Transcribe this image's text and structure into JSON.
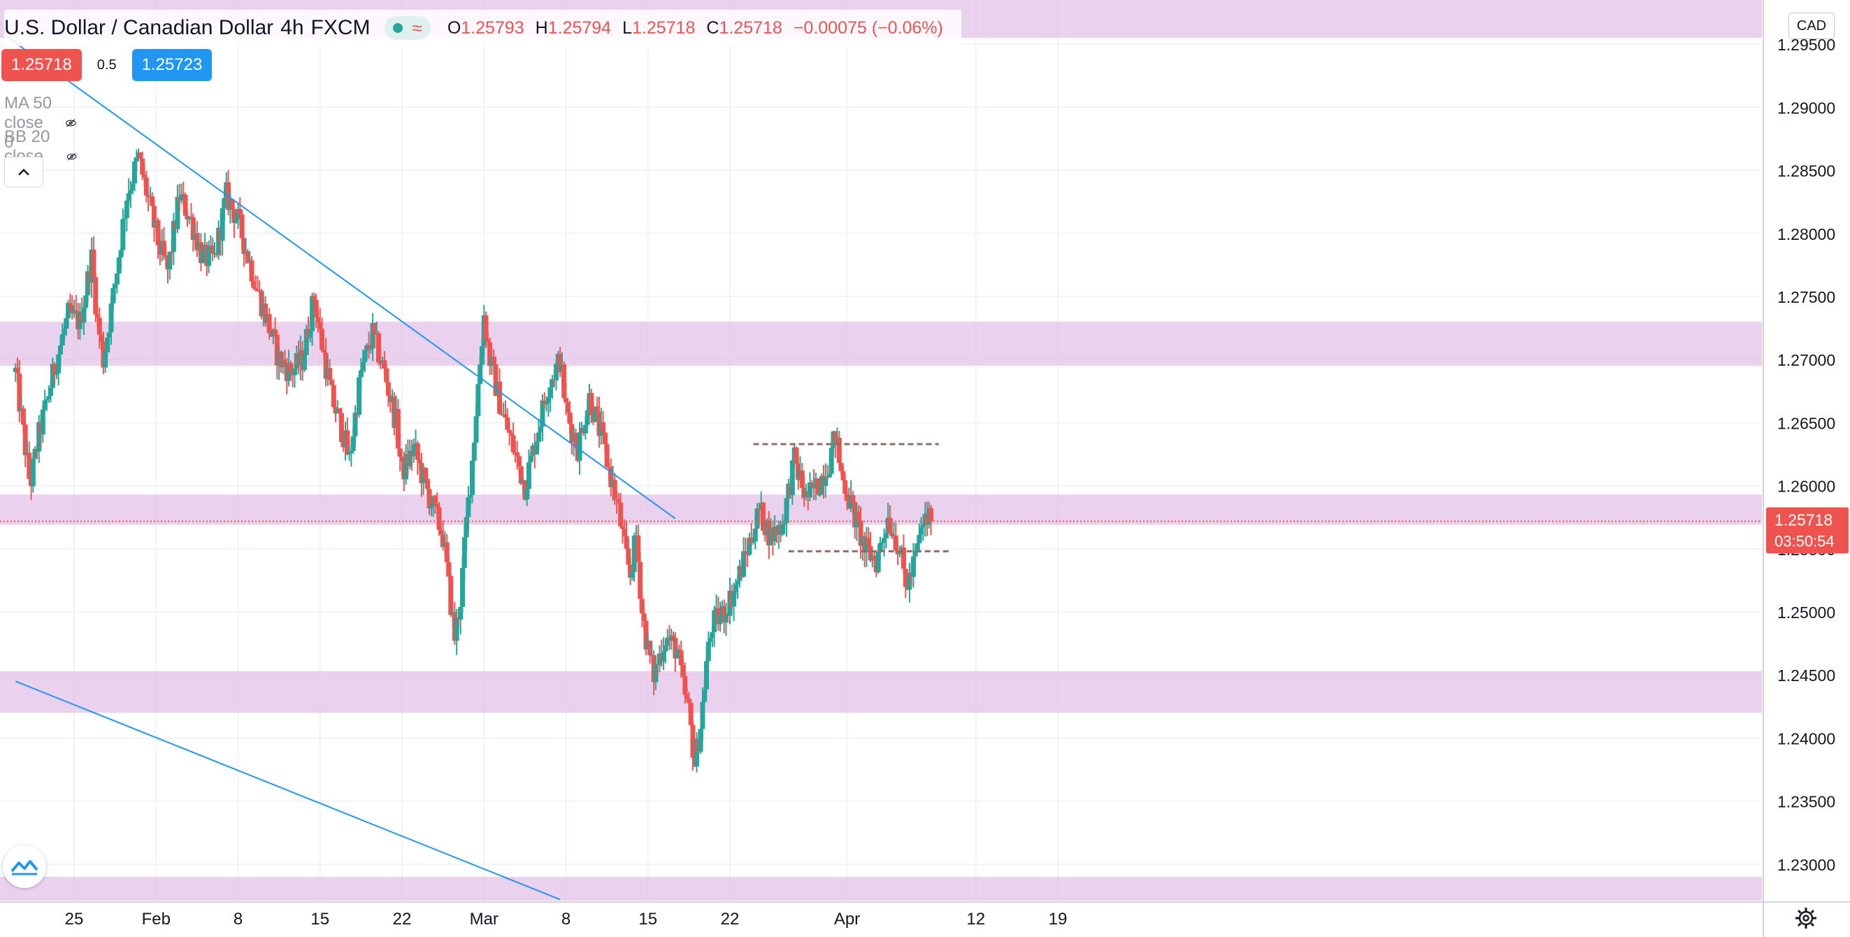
{
  "header": {
    "symbol_name": "U.S. Dollar / Canadian Dollar",
    "interval": "4h",
    "exchange": "FXCM",
    "ohlc": {
      "o_label": "O",
      "o_value": "1.25793",
      "h_label": "H",
      "h_value": "1.25794",
      "l_label": "L",
      "l_value": "1.25718",
      "c_label": "C",
      "c_value": "1.25718",
      "change": "−0.00075 (−0.06%)"
    },
    "sell_price": "1.25718",
    "buy_price": "1.25723",
    "spread": "0.5",
    "currency": "CAD"
  },
  "indicators": [
    {
      "label": "MA 50 close 0"
    },
    {
      "label": "BB 20 close 2 0"
    }
  ],
  "icons": {
    "hidden": "eye-crossed-icon",
    "collapse": "chevron-up-icon",
    "logo": "tradingview-logo-icon",
    "settings": "gear-icon",
    "market_open": "dot-icon",
    "data_delay": "wave-icon"
  },
  "colors": {
    "up": "#26a69a",
    "down": "#ef5350",
    "zone": "#e1bee7",
    "trendline": "#2196f3",
    "support_line": "#8d6e63",
    "grid": "#f0f3fa"
  },
  "chart_data": {
    "type": "candlestick",
    "y_ticks": [
      "1.29500",
      "1.29000",
      "1.28500",
      "1.28000",
      "1.27500",
      "1.27000",
      "1.26500",
      "1.26000",
      "1.25500",
      "1.25000",
      "1.24500",
      "1.24000",
      "1.23500",
      "1.23000"
    ],
    "x_ticks": [
      "25",
      "Feb",
      "8",
      "15",
      "22",
      "Mar",
      "8",
      "15",
      "22",
      "Apr",
      "12",
      "19"
    ],
    "ylim": [
      1.227,
      1.2985
    ],
    "x_dates": [
      "2021-01-25",
      "2021-02-01",
      "2021-02-08",
      "2021-02-15",
      "2021-02-22",
      "2021-03-01",
      "2021-03-08",
      "2021-03-15",
      "2021-03-22",
      "2021-04-01",
      "2021-04-12",
      "2021-04-19"
    ],
    "last_price_label": "1.25718",
    "countdown_label": "03:50:54",
    "last_price": 1.25718,
    "zones": [
      {
        "from": 1.2955,
        "to": 1.2985
      },
      {
        "from": 1.2695,
        "to": 1.273
      },
      {
        "from": 1.2569,
        "to": 1.2593
      },
      {
        "from": 1.242,
        "to": 1.2453
      },
      {
        "from": 1.2271,
        "to": 1.229
      }
    ],
    "trendlines": [
      {
        "start": [
          "2021-01-19 06:00",
          1.2956
        ],
        "end": [
          "2021-03-17 08:00",
          1.2574
        ]
      },
      {
        "start": [
          "2021-01-20 00:00",
          1.2445
        ],
        "end": [
          "2021-03-07 12:00",
          1.2272
        ]
      }
    ],
    "levels": [
      {
        "price": 1.2633,
        "from": "2021-03-24 00:00",
        "to": "2021-04-08 20:00"
      },
      {
        "price": 1.2548,
        "from": "2021-03-27 00:00",
        "to": "2021-04-09 16:00"
      }
    ],
    "price_path": [
      [
        "2021-01-20 00:00",
        1.269
      ],
      [
        "2021-01-21 06:00",
        1.26
      ],
      [
        "2021-01-22 00:00",
        1.264
      ],
      [
        "2021-01-23 12:00",
        1.27
      ],
      [
        "2021-01-24 12:00",
        1.2735
      ],
      [
        "2021-01-25 12:00",
        1.273
      ],
      [
        "2021-01-26 12:00",
        1.278
      ],
      [
        "2021-01-27 00:00",
        1.273
      ],
      [
        "2021-01-27 12:00",
        1.27
      ],
      [
        "2021-01-28 12:00",
        1.276
      ],
      [
        "2021-01-29 12:00",
        1.283
      ],
      [
        "2021-01-30 12:00",
        1.286
      ],
      [
        "2021-01-31 12:00",
        1.282
      ],
      [
        "2021-02-01 06:00",
        1.279
      ],
      [
        "2021-02-02 00:00",
        1.277
      ],
      [
        "2021-02-03 00:00",
        1.283
      ],
      [
        "2021-02-04 00:00",
        1.281
      ],
      [
        "2021-02-05 00:00",
        1.278
      ],
      [
        "2021-02-06 00:00",
        1.278
      ],
      [
        "2021-02-07 00:00",
        1.283
      ],
      [
        "2021-02-08 00:00",
        1.281
      ],
      [
        "2021-02-09 12:00",
        1.276
      ],
      [
        "2021-02-10 12:00",
        1.273
      ],
      [
        "2021-02-11 12:00",
        1.27
      ],
      [
        "2021-02-12 12:00",
        1.269
      ],
      [
        "2021-02-13 12:00",
        1.27
      ],
      [
        "2021-02-14 12:00",
        1.275
      ],
      [
        "2021-02-15 00:00",
        1.272
      ],
      [
        "2021-02-16 00:00",
        1.267
      ],
      [
        "2021-02-17 00:00",
        1.264
      ],
      [
        "2021-02-17 12:00",
        1.262
      ],
      [
        "2021-02-18 12:00",
        1.269
      ],
      [
        "2021-02-19 12:00",
        1.272
      ],
      [
        "2021-02-20 12:00",
        1.269
      ],
      [
        "2021-02-21 12:00",
        1.265
      ],
      [
        "2021-02-22 00:00",
        1.261
      ],
      [
        "2021-02-23 00:00",
        1.263
      ],
      [
        "2021-02-24 00:00",
        1.26
      ],
      [
        "2021-02-25 12:00",
        1.256
      ],
      [
        "2021-02-26 00:00",
        1.252
      ],
      [
        "2021-02-26 12:00",
        1.248
      ],
      [
        "2021-02-27 00:00",
        1.251
      ],
      [
        "2021-02-27 12:00",
        1.257
      ],
      [
        "2021-02-28 00:00",
        1.262
      ],
      [
        "2021-02-28 12:00",
        1.268
      ],
      [
        "2021-03-01 00:00",
        1.2735
      ],
      [
        "2021-03-01 12:00",
        1.27
      ],
      [
        "2021-03-02 12:00",
        1.266
      ],
      [
        "2021-03-03 12:00",
        1.263
      ],
      [
        "2021-03-04 12:00",
        1.26
      ],
      [
        "2021-03-05 12:00",
        1.264
      ],
      [
        "2021-03-06 12:00",
        1.268
      ],
      [
        "2021-03-07 12:00",
        1.27
      ],
      [
        "2021-03-08 00:00",
        1.266
      ],
      [
        "2021-03-09 00:00",
        1.263
      ],
      [
        "2021-03-10 00:00",
        1.267
      ],
      [
        "2021-03-11 00:00",
        1.264
      ],
      [
        "2021-03-12 00:00",
        1.26
      ],
      [
        "2021-03-12 12:00",
        1.258
      ],
      [
        "2021-03-13 00:00",
        1.255
      ],
      [
        "2021-03-13 12:00",
        1.253
      ],
      [
        "2021-03-14 00:00",
        1.256
      ],
      [
        "2021-03-14 12:00",
        1.25
      ],
      [
        "2021-03-15 00:00",
        1.247
      ],
      [
        "2021-03-15 12:00",
        1.245
      ],
      [
        "2021-03-16 12:00",
        1.248
      ],
      [
        "2021-03-17 12:00",
        1.247
      ],
      [
        "2021-03-18 00:00",
        1.244
      ],
      [
        "2021-03-18 12:00",
        1.242
      ],
      [
        "2021-03-19 00:00",
        1.238
      ],
      [
        "2021-03-19 12:00",
        1.241
      ],
      [
        "2021-03-20 00:00",
        1.246
      ],
      [
        "2021-03-20 12:00",
        1.249
      ],
      [
        "2021-03-21 12:00",
        1.25
      ],
      [
        "2021-03-22 12:00",
        1.252
      ],
      [
        "2021-03-23 12:00",
        1.255
      ],
      [
        "2021-03-24 12:00",
        1.258
      ],
      [
        "2021-03-25 12:00",
        1.256
      ],
      [
        "2021-03-26 12:00",
        1.257
      ],
      [
        "2021-03-27 12:00",
        1.262
      ],
      [
        "2021-03-28 12:00",
        1.259
      ],
      [
        "2021-03-29 12:00",
        1.26
      ],
      [
        "2021-03-30 12:00",
        1.262
      ],
      [
        "2021-03-31 00:00",
        1.264
      ],
      [
        "2021-03-31 12:00",
        1.261
      ],
      [
        "2021-04-01 12:00",
        1.258
      ],
      [
        "2021-04-02 12:00",
        1.255
      ],
      [
        "2021-04-03 12:00",
        1.254
      ],
      [
        "2021-04-04 12:00",
        1.2575
      ],
      [
        "2021-04-05 12:00",
        1.255
      ],
      [
        "2021-04-06 00:00",
        1.252
      ],
      [
        "2021-04-06 12:00",
        1.253
      ],
      [
        "2021-04-07 00:00",
        1.255
      ],
      [
        "2021-04-07 12:00",
        1.257
      ],
      [
        "2021-04-08 00:00",
        1.2575
      ],
      [
        "2021-04-08 06:00",
        1.25718
      ]
    ]
  }
}
